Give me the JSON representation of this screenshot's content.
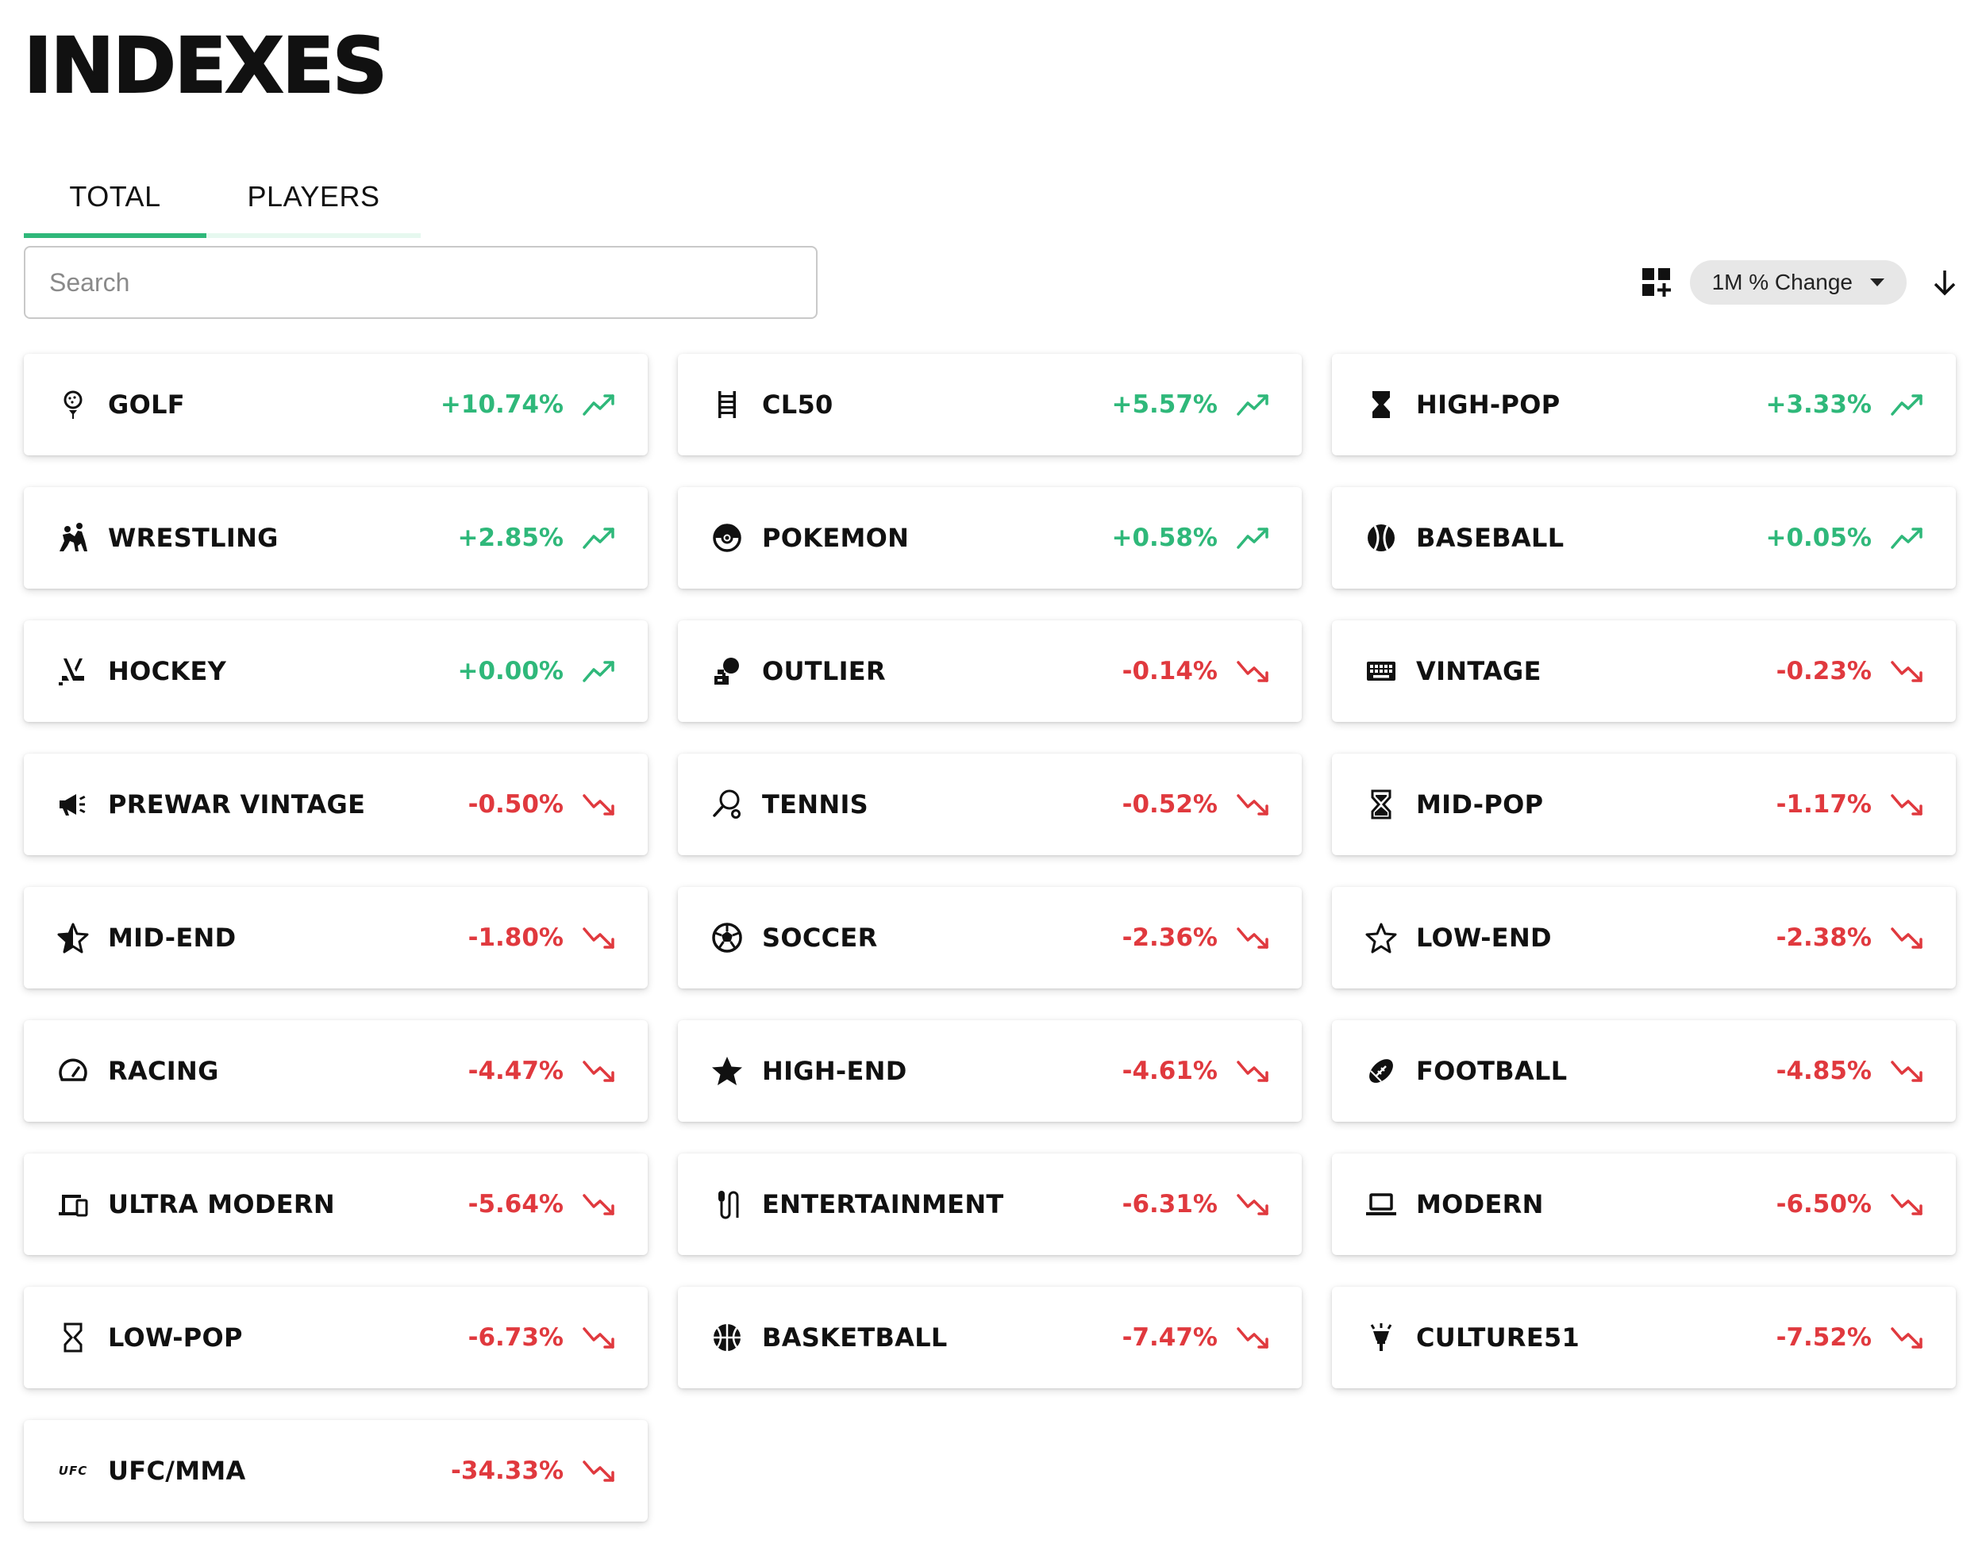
{
  "header": {
    "title": "INDEXES"
  },
  "tabs": [
    {
      "label": "TOTAL",
      "active": true
    },
    {
      "label": "PLAYERS",
      "active": false
    }
  ],
  "search": {
    "placeholder": "Search",
    "value": ""
  },
  "toolbar": {
    "grid_icon": "grid-add-icon",
    "sort_label": "1M % Change",
    "sort_direction_icon": "arrow-down-icon"
  },
  "colors": {
    "accent": "#2fb87a",
    "positive": "#2fb87a",
    "negative": "#e0393e"
  },
  "indexes": [
    {
      "name": "GOLF",
      "change": "+10.74%",
      "trend": "up",
      "icon": "golf-icon"
    },
    {
      "name": "CL50",
      "change": "+5.57%",
      "trend": "up",
      "icon": "ladder-icon"
    },
    {
      "name": "HIGH-POP",
      "change": "+3.33%",
      "trend": "up",
      "icon": "hourglass-full-icon"
    },
    {
      "name": "WRESTLING",
      "change": "+2.85%",
      "trend": "up",
      "icon": "wrestling-icon"
    },
    {
      "name": "POKEMON",
      "change": "+0.58%",
      "trend": "up",
      "icon": "pokeball-icon"
    },
    {
      "name": "BASEBALL",
      "change": "+0.05%",
      "trend": "up",
      "icon": "baseball-icon"
    },
    {
      "name": "HOCKEY",
      "change": "+0.00%",
      "trend": "up",
      "icon": "hockey-icon"
    },
    {
      "name": "OUTLIER",
      "change": "-0.14%",
      "trend": "down",
      "icon": "outlier-icon"
    },
    {
      "name": "VINTAGE",
      "change": "-0.23%",
      "trend": "down",
      "icon": "keyboard-icon"
    },
    {
      "name": "PREWAR VINTAGE",
      "change": "-0.50%",
      "trend": "down",
      "icon": "megaphone-icon"
    },
    {
      "name": "TENNIS",
      "change": "-0.52%",
      "trend": "down",
      "icon": "tennis-racket-icon"
    },
    {
      "name": "MID-POP",
      "change": "-1.17%",
      "trend": "down",
      "icon": "hourglass-half-icon"
    },
    {
      "name": "MID-END",
      "change": "-1.80%",
      "trend": "down",
      "icon": "star-half-icon"
    },
    {
      "name": "SOCCER",
      "change": "-2.36%",
      "trend": "down",
      "icon": "soccer-ball-icon"
    },
    {
      "name": "LOW-END",
      "change": "-2.38%",
      "trend": "down",
      "icon": "star-outline-icon"
    },
    {
      "name": "RACING",
      "change": "-4.47%",
      "trend": "down",
      "icon": "speedometer-icon"
    },
    {
      "name": "HIGH-END",
      "change": "-4.61%",
      "trend": "down",
      "icon": "star-filled-icon"
    },
    {
      "name": "FOOTBALL",
      "change": "-4.85%",
      "trend": "down",
      "icon": "football-icon"
    },
    {
      "name": "ULTRA MODERN",
      "change": "-5.64%",
      "trend": "down",
      "icon": "devices-icon"
    },
    {
      "name": "ENTERTAINMENT",
      "change": "-6.31%",
      "trend": "down",
      "icon": "microphone-icon"
    },
    {
      "name": "MODERN",
      "change": "-6.50%",
      "trend": "down",
      "icon": "laptop-icon"
    },
    {
      "name": "LOW-POP",
      "change": "-6.73%",
      "trend": "down",
      "icon": "hourglass-empty-icon"
    },
    {
      "name": "BASKETBALL",
      "change": "-7.47%",
      "trend": "down",
      "icon": "basketball-icon"
    },
    {
      "name": "CULTURE51",
      "change": "-7.52%",
      "trend": "down",
      "icon": "spotlight-icon"
    },
    {
      "name": "UFC/MMA",
      "change": "-34.33%",
      "trend": "down",
      "icon": "ufc-icon",
      "icon_text": "UFC"
    }
  ]
}
